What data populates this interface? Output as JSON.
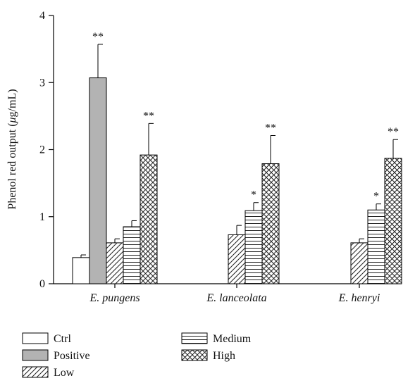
{
  "chart_data": {
    "type": "bar",
    "ylabel_prefix": "Phenol red output (",
    "ylabel_mu": "μ",
    "ylabel_suffix": "g/mL)",
    "ylim": [
      0,
      4
    ],
    "yticks": [
      "0",
      "1",
      "2",
      "3",
      "4"
    ],
    "categories": [
      "E. pungens",
      "E. lanceolata",
      "E. henryi"
    ],
    "series": [
      {
        "name": "Ctrl",
        "values": [
          0.39,
          null,
          null
        ],
        "errors": [
          0.04,
          null,
          null
        ],
        "stars": [
          "",
          "",
          ""
        ],
        "fill": "#ffffff",
        "pattern": "none"
      },
      {
        "name": "Positive",
        "values": [
          3.07,
          null,
          null
        ],
        "errors": [
          0.5,
          null,
          null
        ],
        "stars": [
          "**",
          "",
          ""
        ],
        "fill": "#b3b3b3",
        "pattern": "none"
      },
      {
        "name": "Low",
        "values": [
          0.61,
          0.73,
          0.61
        ],
        "errors": [
          0.06,
          0.14,
          0.06
        ],
        "stars": [
          "",
          "",
          ""
        ],
        "fill": "#ffffff",
        "pattern": "diag"
      },
      {
        "name": "Medium",
        "values": [
          0.85,
          1.09,
          1.1
        ],
        "errors": [
          0.09,
          0.12,
          0.09
        ],
        "stars": [
          "",
          "*",
          "*"
        ],
        "fill": "#ffffff",
        "pattern": "horiz"
      },
      {
        "name": "High",
        "values": [
          1.92,
          1.79,
          1.87
        ],
        "errors": [
          0.47,
          0.42,
          0.28
        ],
        "stars": [
          "**",
          "**",
          "**"
        ],
        "fill": "#ffffff",
        "pattern": "cross"
      }
    ],
    "legend_position": "bottom-left",
    "legend": {
      "col1": [
        "Ctrl",
        "Positive",
        "Low"
      ],
      "col2": [
        "Medium",
        "High"
      ]
    }
  }
}
